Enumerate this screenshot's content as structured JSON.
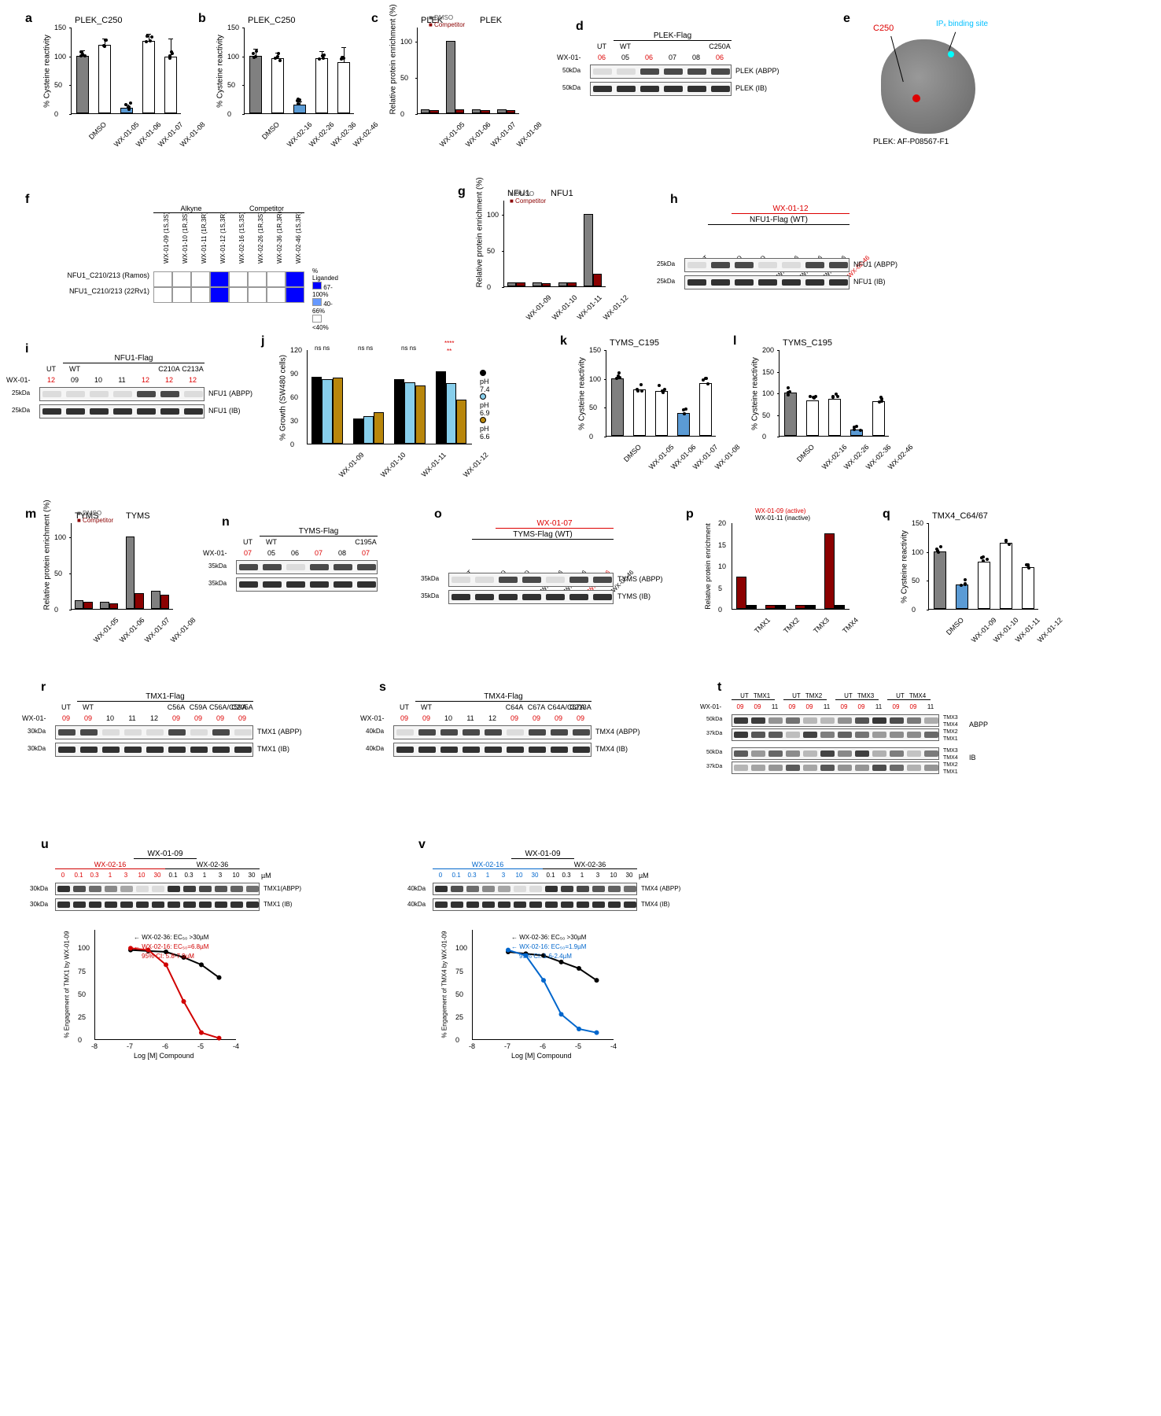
{
  "colors": {
    "gray_bar": "#808080",
    "white_bar": "#ffffff",
    "blue_bar": "#5b9bd5",
    "darkred": "#8b0000",
    "red_text": "#d00000",
    "blue_text": "#0066cc",
    "cyan_text": "#00bfff",
    "heatmap_blue": "#0000ff",
    "heatmap_white": "#ffffff",
    "black": "#000000",
    "tan": "#b8860b",
    "lightblue": "#87ceeb"
  },
  "panels": {
    "a": {
      "label": "a",
      "title": "PLEK_C250",
      "ylabel": "% Cysteine reactivity",
      "ymax": 150,
      "ytick": 50,
      "x": [
        "DMSO",
        "WX-01-05",
        "WX-01-06",
        "WX-01-07",
        "WX-01-08"
      ],
      "y": [
        100,
        118,
        10,
        125,
        98
      ],
      "colors": [
        "#808080",
        "#ffffff",
        "#5b9bd5",
        "#ffffff",
        "#ffffff"
      ],
      "err": [
        8,
        10,
        3,
        12,
        30
      ]
    },
    "b": {
      "label": "b",
      "title": "PLEK_C250",
      "ylabel": "% Cysteine reactivity",
      "ymax": 150,
      "ytick": 50,
      "x": [
        "DMSO",
        "WX-02-16",
        "WX-02-26",
        "WX-02-36",
        "WX-02-46"
      ],
      "y": [
        100,
        95,
        15,
        96,
        88
      ],
      "colors": [
        "#808080",
        "#ffffff",
        "#5b9bd5",
        "#ffffff",
        "#ffffff"
      ],
      "err": [
        10,
        8,
        4,
        10,
        25
      ]
    },
    "c": {
      "label": "c",
      "title": "PLEK",
      "ylabel": "Relative protein enrichment (%)",
      "ymax": 120,
      "ytick": 50,
      "legend": [
        "DMSO",
        "Competitor"
      ],
      "legend_colors": [
        "#808080",
        "#8b0000"
      ],
      "x": [
        "WX-01-05",
        "WX-01-06",
        "WX-01-07",
        "WX-01-08"
      ],
      "y_dmso": [
        5,
        100,
        5,
        5
      ],
      "y_comp": [
        4,
        6,
        4,
        4
      ]
    },
    "d": {
      "label": "d",
      "header1": "PLEK-Flag",
      "lanes_top": [
        "UT",
        "WT",
        "",
        "",
        "",
        "C250A"
      ],
      "compound_row": "WX-01-",
      "compounds": [
        "06",
        "05",
        "06",
        "07",
        "08",
        "06"
      ],
      "compound_red": [
        0,
        2,
        5
      ],
      "mw": "50kDa",
      "row_labels": [
        "PLEK (ABPP)",
        "PLEK (IB)"
      ]
    },
    "e": {
      "label": "e",
      "c250_label": "C250",
      "ip_label": "IPₓ binding site",
      "struct_label": "PLEK: AF-P08567-F1"
    },
    "f": {
      "label": "f",
      "col_head1": "Alkyne",
      "col_head2": "Competitor",
      "cols": [
        "WX-01-09 (1S,3S)",
        "WX-01-10 (1R,3S)",
        "WX-01-11 (1R,3R)",
        "WX-01-12 (1S,3R)",
        "WX-02-16 (1S,3S)",
        "WX-02-26 (1R,3S)",
        "WX-02-36 (1R,3R)",
        "WX-02-46 (1S,3R)"
      ],
      "rows": [
        "NFU1_C210/213 (Ramos)",
        "NFU1_C210/213 (22Rv1)"
      ],
      "values": [
        [
          0,
          0,
          0,
          95,
          0,
          0,
          0,
          88
        ],
        [
          0,
          0,
          0,
          92,
          0,
          0,
          0,
          85
        ]
      ],
      "legend_label": "% Liganded",
      "legend_ranges": [
        "67-100%",
        "40-66%",
        "<40%"
      ],
      "legend_colors": [
        "#0000ff",
        "#6699ff",
        "#ffffff"
      ]
    },
    "g": {
      "label": "g",
      "title": "NFU1",
      "ylabel": "Relative protein enrichment (%)",
      "ymax": 120,
      "ytick": 50,
      "legend": [
        "DMSO",
        "Competitor"
      ],
      "x": [
        "WX-01-09",
        "WX-01-10",
        "WX-01-11",
        "WX-01-12"
      ],
      "y_dmso": [
        6,
        5,
        6,
        100
      ],
      "y_comp": [
        5,
        4,
        5,
        18
      ]
    },
    "h": {
      "label": "h",
      "red_header": "WX-01-12",
      "header": "NFU1-Flag (WT)",
      "lanes": [
        "UT",
        "DMSO",
        "DMSO",
        "WX-02-16",
        "WX-02-26",
        "WX-02-36",
        "WX-02-46"
      ],
      "red_lane": [
        6
      ],
      "mw": "25kDa",
      "row_labels": [
        "NFU1 (ABPP)",
        "NFU1 (IB)"
      ]
    },
    "i": {
      "label": "i",
      "header": "NFU1-Flag",
      "lanes_top": [
        "UT",
        "WT",
        "",
        "",
        "",
        "C210A",
        "C213A"
      ],
      "compound_row": "WX-01-",
      "compounds": [
        "12",
        "09",
        "10",
        "11",
        "12",
        "12",
        "12"
      ],
      "compound_red": [
        0,
        4,
        5,
        6
      ],
      "mw": "25kDa",
      "row_labels": [
        "NFU1 (ABPP)",
        "NFU1 (IB)"
      ]
    },
    "j": {
      "label": "j",
      "ylabel": "% Growth (SW480 cells)",
      "ymax": 120,
      "ytick": 30,
      "x": [
        "WX-01-09",
        "WX-01-10",
        "WX-01-11",
        "WX-01-12"
      ],
      "ph_labels": [
        "pH 7.4",
        "pH 6.9",
        "pH 6.6"
      ],
      "ph_colors": [
        "#000000",
        "#87ceeb",
        "#b8860b"
      ],
      "data": [
        [
          85,
          82,
          84
        ],
        [
          32,
          35,
          40
        ],
        [
          82,
          78,
          74
        ],
        [
          92,
          77,
          56
        ]
      ],
      "sig": [
        "ns",
        "ns",
        "ns",
        "ns",
        "ns",
        "ns",
        "****",
        "**"
      ]
    },
    "k": {
      "label": "k",
      "title": "TYMS_C195",
      "ylabel": "% Cysteine reactivity",
      "ymax": 150,
      "ytick": 50,
      "x": [
        "DMSO",
        "WX-01-05",
        "WX-01-06",
        "WX-01-07",
        "WX-01-08"
      ],
      "y": [
        100,
        80,
        78,
        40,
        92
      ],
      "colors": [
        "#808080",
        "#ffffff",
        "#ffffff",
        "#5b9bd5",
        "#ffffff"
      ]
    },
    "l": {
      "label": "l",
      "title": "TYMS_C195",
      "ylabel": "% Cysteine reactivity",
      "ymax": 200,
      "ytick": 50,
      "x": [
        "DMSO",
        "WX-02-16",
        "WX-02-26",
        "WX-02-36",
        "WX-02-46"
      ],
      "y": [
        100,
        82,
        85,
        15,
        80
      ],
      "colors": [
        "#808080",
        "#ffffff",
        "#ffffff",
        "#5b9bd5",
        "#ffffff"
      ]
    },
    "m": {
      "label": "m",
      "title": "TYMS",
      "ylabel": "Relative protein enrichment (%)",
      "ymax": 120,
      "ytick": 50,
      "legend": [
        "DMSO",
        "Competitor"
      ],
      "x": [
        "WX-01-05",
        "WX-01-06",
        "WX-01-07",
        "WX-01-08"
      ],
      "y_dmso": [
        12,
        10,
        100,
        25
      ],
      "y_comp": [
        10,
        8,
        22,
        20
      ]
    },
    "n": {
      "label": "n",
      "header": "TYMS-Flag",
      "lanes_top": [
        "UT",
        "WT",
        "",
        "",
        "",
        "C195A"
      ],
      "compound_row": "WX-01-",
      "compounds": [
        "07",
        "05",
        "06",
        "07",
        "08",
        "07"
      ],
      "compound_red": [
        0,
        3,
        5
      ],
      "mw": "35kDa"
    },
    "o": {
      "label": "o",
      "red_header": "WX-01-07",
      "header": "TYMS-Flag (WT)",
      "lanes": [
        "UT",
        "DMSO",
        "DMSO",
        "WX-02-16",
        "WX-02-26",
        "WX-02-36",
        "WX-02-46"
      ],
      "red_lane": [
        5
      ],
      "mw": "35kDa",
      "row_labels": [
        "TYMS (ABPP)",
        "TYMS (IB)"
      ]
    },
    "p": {
      "label": "p",
      "ylabel": "Relative protein enrichment",
      "ymax": 20,
      "ytick": 5,
      "legend": [
        "WX-01-09 (active)",
        "WX-01-11 (inactive)"
      ],
      "legend_colors": [
        "#8b0000",
        "#000000"
      ],
      "x": [
        "TMX1",
        "TMX2",
        "TMX3",
        "TMX4"
      ],
      "y_active": [
        7.5,
        1,
        1,
        17.5
      ],
      "y_inactive": [
        1,
        1,
        1,
        1
      ]
    },
    "q": {
      "label": "q",
      "title": "TMX4_C64/67",
      "ylabel": "% Cysteine reactivity",
      "ymax": 150,
      "ytick": 50,
      "x": [
        "DMSO",
        "WX-01-09",
        "WX-01-10",
        "WX-01-11",
        "WX-01-12"
      ],
      "y": [
        100,
        42,
        82,
        115,
        72
      ],
      "colors": [
        "#808080",
        "#5b9bd5",
        "#ffffff",
        "#ffffff",
        "#ffffff"
      ]
    },
    "r": {
      "label": "r",
      "header": "TMX1-Flag",
      "lanes_top": [
        "UT",
        "WT",
        "",
        "",
        "",
        "C56A",
        "C59A",
        "C56A/C59A",
        "C205A"
      ],
      "compound_row": "WX-01-",
      "compounds": [
        "09",
        "09",
        "10",
        "11",
        "12",
        "09",
        "09",
        "09",
        "09"
      ],
      "compound_red": [
        0,
        1,
        5,
        6,
        7,
        8
      ],
      "mw": "30kDa",
      "row_labels": [
        "TMX1 (ABPP)",
        "TMX1 (IB)"
      ]
    },
    "s": {
      "label": "s",
      "header": "TMX4-Flag",
      "lanes_top": [
        "UT",
        "WT",
        "",
        "",
        "",
        "C64A",
        "C67A",
        "C64A/C67A",
        "C213A"
      ],
      "compound_row": "WX-01-",
      "compounds": [
        "09",
        "09",
        "10",
        "11",
        "12",
        "09",
        "09",
        "09",
        "09"
      ],
      "compound_red": [
        0,
        1,
        5,
        6,
        7,
        8
      ],
      "mw": "40kDa",
      "row_labels": [
        "TMX4 (ABPP)",
        "TMX4 (IB)"
      ]
    },
    "t": {
      "label": "t",
      "col_groups": [
        "UT",
        "TMX1",
        "UT",
        "TMX2",
        "UT",
        "TMX3",
        "UT",
        "TMX4"
      ],
      "compound_row": "WX-01-",
      "compounds": [
        "09",
        "09",
        "11",
        "09",
        "09",
        "11",
        "09",
        "09",
        "11",
        "09",
        "09",
        "11"
      ],
      "compound_red": [
        0,
        1,
        3,
        4,
        6,
        7,
        9,
        10
      ],
      "mw1": "50kDa",
      "mw2": "37kDa",
      "right_labels": [
        "TMX3",
        "TMX4",
        "TMX2",
        "TMX1"
      ],
      "panel_labels": [
        "ABPP",
        "IB"
      ]
    },
    "u": {
      "label": "u",
      "top_header": "WX-01-09",
      "comp1": "WX-02-16",
      "comp2": "WX-02-36",
      "concs": [
        "0",
        "0.1",
        "0.3",
        "1",
        "3",
        "10",
        "30",
        "0.1",
        "0.3",
        "1",
        "3",
        "10",
        "30"
      ],
      "unit": "µM",
      "mw": "30kDa",
      "row_labels": [
        "TMX1(ABPP)",
        "TMX1 (IB)"
      ],
      "curve_ylabel": "% Engagement of TMX1 by WX-01-09",
      "curve_xlabel": "Log [M] Compound",
      "xlim": [
        -8,
        -4
      ],
      "ylim": [
        0,
        120
      ],
      "ec50_1": "WX-02-36: EC₅₀ >30µM",
      "ec50_2": "WX-02-16: EC₅₀=6.8µM",
      "ci": "95% CI: 5.8-7.9µM",
      "curve1_color": "#000000",
      "curve2_color": "#d00000",
      "data2": [
        [
          -7,
          100
        ],
        [
          -6.5,
          98
        ],
        [
          -6,
          82
        ],
        [
          -5.5,
          42
        ],
        [
          -5,
          8
        ],
        [
          -4.5,
          2
        ]
      ],
      "data1": [
        [
          -7,
          98
        ],
        [
          -6.5,
          97
        ],
        [
          -6,
          96
        ],
        [
          -5.5,
          90
        ],
        [
          -5,
          82
        ],
        [
          -4.5,
          68
        ]
      ]
    },
    "v": {
      "label": "v",
      "top_header": "WX-01-09",
      "comp1": "WX-02-16",
      "comp2": "WX-02-36",
      "concs": [
        "0",
        "0.1",
        "0.3",
        "1",
        "3",
        "10",
        "30",
        "0.1",
        "0.3",
        "1",
        "3",
        "10",
        "30"
      ],
      "unit": "µM",
      "mw": "40kDa",
      "row_labels": [
        "TMX4 (ABPP)",
        "TMX4 (IB)"
      ],
      "curve_ylabel": "% Engagement of TMX4 by WX-01-09",
      "curve_xlabel": "Log [M] Compound",
      "xlim": [
        -8,
        -4
      ],
      "ylim": [
        0,
        120
      ],
      "ec50_1": "WX-02-36: EC₅₀ >30µM",
      "ec50_2": "WX-02-16: EC₅₀=1.9µM",
      "ci": "95% CI: 1.6-2.4µM",
      "curve1_color": "#000000",
      "curve2_color": "#0066cc",
      "data2": [
        [
          -7,
          98
        ],
        [
          -6.5,
          92
        ],
        [
          -6,
          65
        ],
        [
          -5.5,
          28
        ],
        [
          -5,
          12
        ],
        [
          -4.5,
          8
        ]
      ],
      "data1": [
        [
          -7,
          96
        ],
        [
          -6.5,
          94
        ],
        [
          -6,
          92
        ],
        [
          -5.5,
          85
        ],
        [
          -5,
          78
        ],
        [
          -4.5,
          65
        ]
      ]
    }
  }
}
